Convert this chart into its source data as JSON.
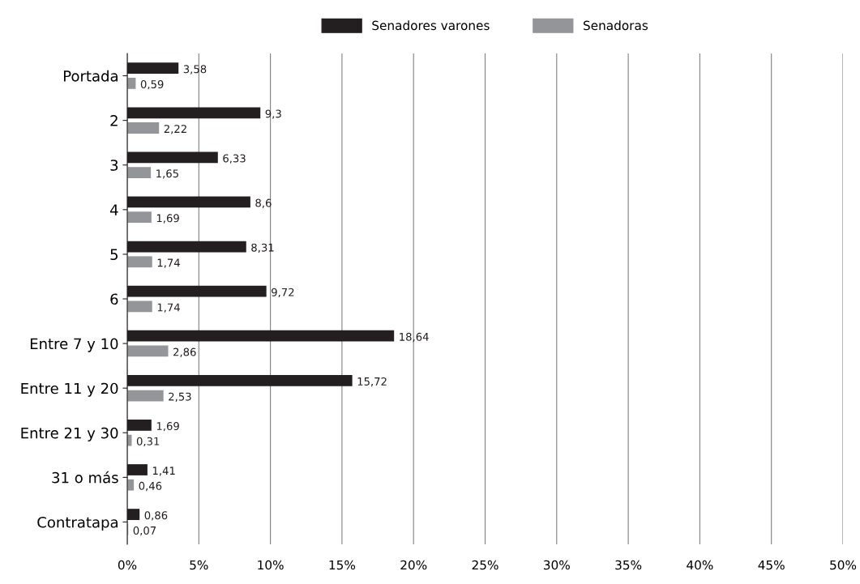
{
  "chart_data": {
    "type": "bar",
    "orientation": "horizontal",
    "categories": [
      "Portada",
      "2",
      "3",
      "4",
      "5",
      "6",
      "Entre 7 y 10",
      "Entre 11 y 20",
      "Entre 21 y 30",
      "31 o más",
      "Contratapa"
    ],
    "series": [
      {
        "name": "Senadores varones",
        "color": "#231f20",
        "values": [
          3.58,
          9.3,
          6.33,
          8.6,
          8.31,
          9.72,
          18.64,
          15.72,
          1.69,
          1.41,
          0.86
        ],
        "value_labels": [
          "3,58",
          "9,3",
          "6,33",
          "8,6",
          "8,31",
          "9,72",
          "18,64",
          "15,72",
          "1,69",
          "1,41",
          "0,86"
        ]
      },
      {
        "name": "Senadoras",
        "color": "#939598",
        "values": [
          0.59,
          2.22,
          1.65,
          1.69,
          1.74,
          1.74,
          2.86,
          2.53,
          0.31,
          0.46,
          0.07
        ],
        "value_labels": [
          "0,59",
          "2,22",
          "1,65",
          "1,69",
          "1,74",
          "1,74",
          "2,86",
          "2,53",
          "0,31",
          "0,46",
          "0,07"
        ]
      }
    ],
    "xlim": [
      0,
      50
    ],
    "xticks": [
      {
        "value": 0,
        "label": "0%"
      },
      {
        "value": 5,
        "label": "5%"
      },
      {
        "value": 10,
        "label": "10%"
      },
      {
        "value": 15,
        "label": "15%"
      },
      {
        "value": 20,
        "label": "20%"
      },
      {
        "value": 25,
        "label": "25%"
      },
      {
        "value": 30,
        "label": "30%"
      },
      {
        "value": 35,
        "label": "35%"
      },
      {
        "value": 40,
        "label": "40%"
      },
      {
        "value": 45,
        "label": "45%"
      },
      {
        "value": 50,
        "label": "50%"
      }
    ],
    "grid": "x",
    "legend": "top"
  }
}
